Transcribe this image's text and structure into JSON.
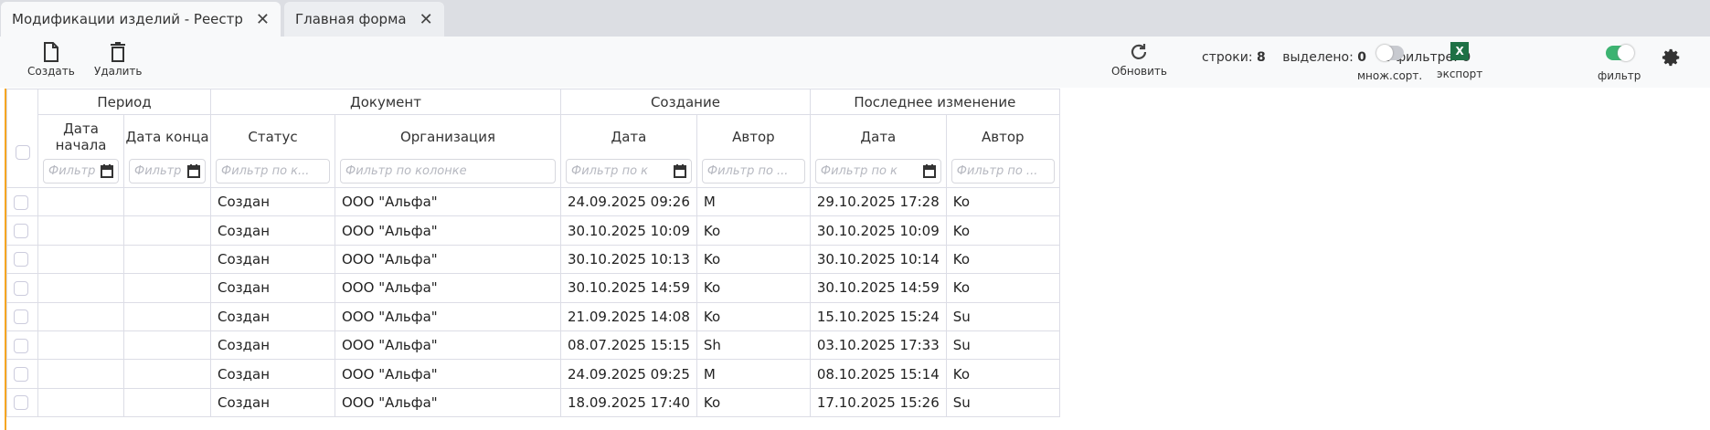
{
  "tabs": [
    {
      "label": "Модификации изделий - Реестр",
      "active": true
    },
    {
      "label": "Главная форма",
      "active": false
    }
  ],
  "toolbar": {
    "create": "Создать",
    "delete": "Удалить",
    "refresh": "Обновить",
    "rows_label": "строки:",
    "rows": "8",
    "selected_label": "выделено:",
    "selected": "0",
    "infilter_label": "в фильтре:",
    "infilter": "0",
    "multisort": "множ.сорт.",
    "multisort_on": false,
    "export": "экспорт",
    "export_icon": "X",
    "filter": "фильтр",
    "filter_on": true,
    "accent": "#3cb371",
    "excel_color": "#1e7145"
  },
  "groups": [
    "Период",
    "Документ",
    "Создание",
    "Последнее изменение"
  ],
  "columns": [
    "Дата начала",
    "Дата конца",
    "Статус",
    "Организация",
    "Дата",
    "Автор",
    "Дата",
    "Автор"
  ],
  "filter_placeholders": [
    "Фильтр",
    "Фильтр",
    "Фильтр по к...",
    "Фильтр по колонке",
    "Фильтр по к",
    "Фильтр по ...",
    "Фильтр по к",
    "Фильтр по ..."
  ],
  "rows": [
    [
      "",
      "",
      "Создан",
      "ООО \"Альфа\"",
      "24.09.2025 09:26",
      "M",
      "29.10.2025 17:28",
      "Ko"
    ],
    [
      "",
      "",
      "Создан",
      "ООО \"Альфа\"",
      "30.10.2025 10:09",
      "Ko",
      "30.10.2025 10:09",
      "Ko"
    ],
    [
      "",
      "",
      "Создан",
      "ООО \"Альфа\"",
      "30.10.2025 10:13",
      "Ko",
      "30.10.2025 10:14",
      "Ko"
    ],
    [
      "",
      "",
      "Создан",
      "ООО \"Альфа\"",
      "30.10.2025 14:59",
      "Ko",
      "30.10.2025 14:59",
      "Ko"
    ],
    [
      "",
      "",
      "Создан",
      "ООО \"Альфа\"",
      "21.09.2025 14:08",
      "Ko",
      "15.10.2025 15:24",
      "Su"
    ],
    [
      "",
      "",
      "Создан",
      "ООО \"Альфа\"",
      "08.07.2025 15:15",
      "Sh",
      "03.10.2025 17:33",
      "Su"
    ],
    [
      "",
      "",
      "Создан",
      "ООО \"Альфа\"",
      "24.09.2025 09:25",
      "M",
      "08.10.2025 15:14",
      "Ko"
    ],
    [
      "",
      "",
      "Создан",
      "ООО \"Альфа\"",
      "18.09.2025 17:40",
      "Ko",
      "17.10.2025 15:26",
      "Su"
    ]
  ]
}
